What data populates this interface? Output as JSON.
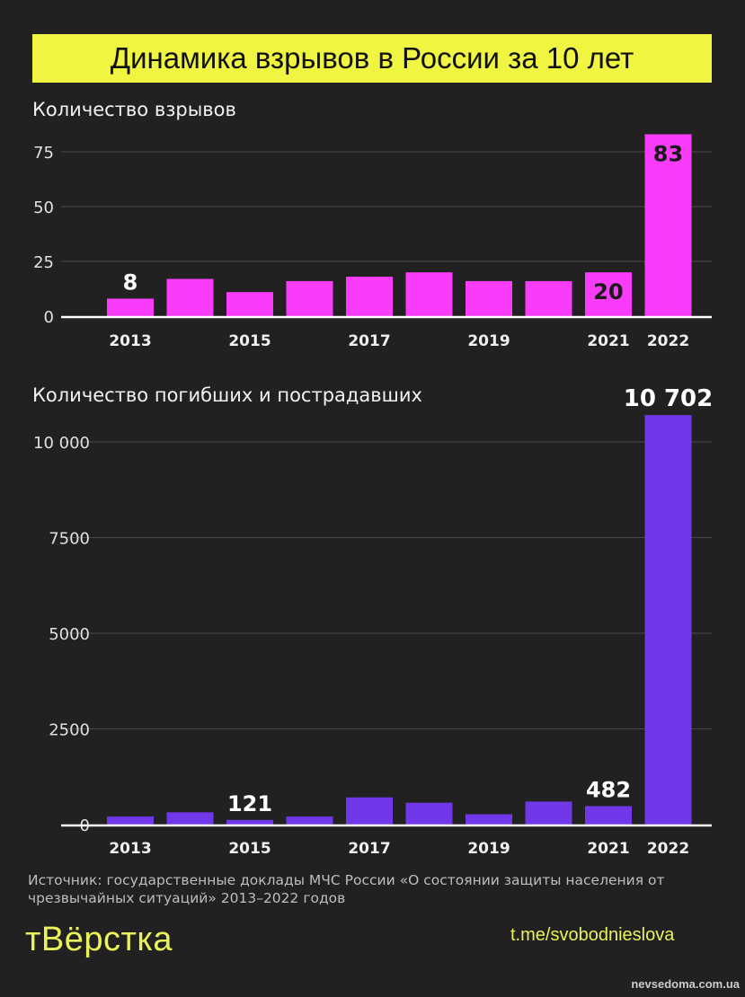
{
  "title": "Динамика взрывов в России за 10 лет",
  "chart_data": [
    {
      "type": "bar",
      "title": "Количество взрывов",
      "categories": [
        "2013",
        "2014",
        "2015",
        "2016",
        "2017",
        "2018",
        "2019",
        "2020",
        "2021",
        "2022"
      ],
      "tick_labels": [
        "2013",
        "",
        "2015",
        "",
        "2017",
        "",
        "2019",
        "",
        "2021",
        "2022"
      ],
      "values": [
        8,
        17,
        11,
        16,
        18,
        20,
        16,
        16,
        20,
        83
      ],
      "data_labels": {
        "0": "8",
        "8": "20",
        "9": "83"
      },
      "yticks": [
        "0",
        "25",
        "50",
        "75"
      ],
      "ytick_values": [
        0,
        25,
        50,
        75
      ],
      "ylim": [
        0,
        85
      ],
      "grid": true,
      "color": "#f93cf9"
    },
    {
      "type": "bar",
      "title": "Количество погибших и пострадавших",
      "categories": [
        "2013",
        "2014",
        "2015",
        "2016",
        "2017",
        "2018",
        "2019",
        "2020",
        "2021",
        "2022"
      ],
      "tick_labels": [
        "2013",
        "",
        "2015",
        "",
        "2017",
        "",
        "2019",
        "",
        "2021",
        "2022"
      ],
      "values": [
        210,
        320,
        121,
        210,
        710,
        570,
        270,
        600,
        482,
        10702
      ],
      "data_labels": {
        "2": "121",
        "8": "482",
        "9": "10 702"
      },
      "yticks": [
        "0",
        "2500",
        "5000",
        "7500",
        "10 000"
      ],
      "ytick_values": [
        0,
        2500,
        5000,
        7500,
        10000
      ],
      "ylim": [
        0,
        10702
      ],
      "grid": true,
      "color": "#7038e8"
    }
  ],
  "source": "Источник: государственные доклады МЧС России «О состоянии защиты населения от чрезвычайных ситуаций» 2013–2022 годов",
  "logo": "тВёрстка",
  "channel": "t.me/svobodnieslova",
  "watermark": "nevsedoma.com.ua"
}
